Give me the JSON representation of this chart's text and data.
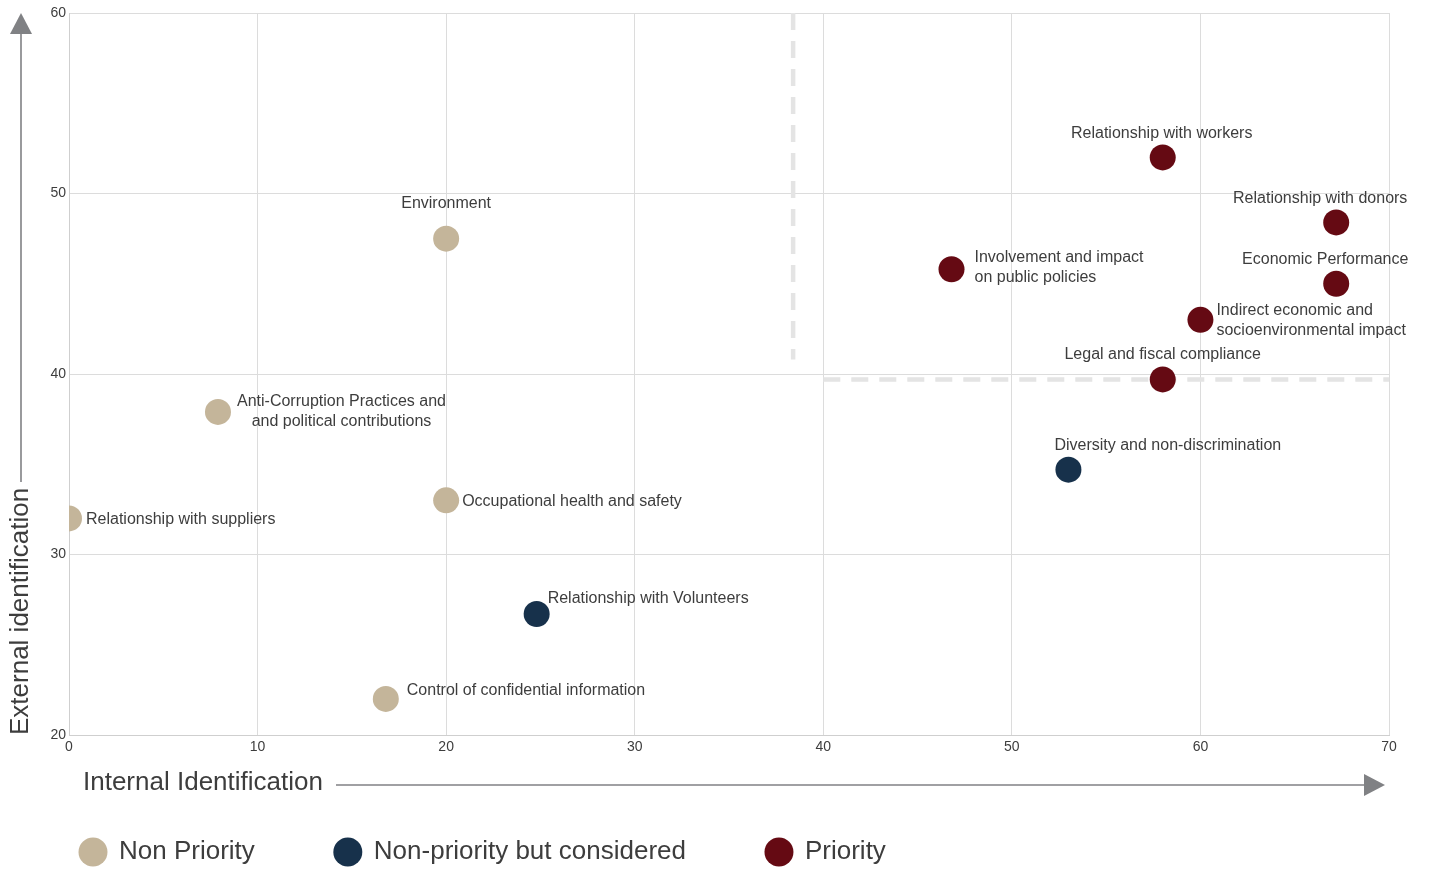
{
  "chart_data": {
    "type": "scatter",
    "xlabel": "Internal Identification",
    "ylabel": "External identification",
    "xlim": [
      0,
      70
    ],
    "xticks": [
      0,
      10,
      20,
      30,
      40,
      50,
      60,
      70
    ],
    "ylim": [
      20,
      60
    ],
    "yticks": [
      20,
      30,
      40,
      50,
      60
    ],
    "grid": true,
    "legend": "bottom left",
    "marker": "circle",
    "series": [
      {
        "name": "Non Priority",
        "color": "#c4b59a",
        "x": [
          20,
          7.9,
          0,
          20,
          16.8
        ],
        "values": [
          47.5,
          37.9,
          32.0,
          33.0,
          22.0
        ]
      },
      {
        "name": "Non-priority but considered",
        "color": "#17314b",
        "x": [
          24.8,
          53.0
        ],
        "values": [
          26.7,
          34.7
        ]
      },
      {
        "name": "Priority",
        "color": "#650a13",
        "x": [
          58.0,
          67.2,
          46.8,
          67.2,
          60.0,
          58.0
        ],
        "values": [
          52.0,
          48.4,
          45.8,
          45.0,
          43.0,
          39.7
        ]
      },
      {
        "type": "line",
        "color": "#e4e4e4",
        "line_style": "dashed",
        "marker": "none",
        "x": [
          38.4,
          38.4
        ],
        "values": [
          60,
          40.8
        ]
      },
      {
        "type": "line",
        "color": "#e4e4e4",
        "line_style": "dashed",
        "marker": "none",
        "x": [
          40,
          70
        ],
        "values": [
          39.7,
          39.7
        ]
      }
    ],
    "annotations": [
      {
        "text": "Environment",
        "x": 20,
        "y": 47.5
      },
      {
        "text": "Anti-Corruption Practices and and political contributions",
        "x": 7.9,
        "y": 37.9
      },
      {
        "text": "Relationship with suppliers",
        "x": 0,
        "y": 32.0
      },
      {
        "text": "Occupational health and safety",
        "x": 20,
        "y": 33.0
      },
      {
        "text": "Control of confidential information",
        "x": 16.8,
        "y": 22.0
      },
      {
        "text": "Relationship with Volunteers",
        "x": 24.8,
        "y": 26.7
      },
      {
        "text": "Diversity and non-discrimination",
        "x": 53.0,
        "y": 34.7
      },
      {
        "text": "Relationship with workers",
        "x": 58.0,
        "y": 52.0
      },
      {
        "text": "Relationship with donors",
        "x": 67.2,
        "y": 48.4
      },
      {
        "text": "Involvement and impact on public policies",
        "x": 46.8,
        "y": 45.8
      },
      {
        "text": "Economic Performance",
        "x": 67.2,
        "y": 45.0
      },
      {
        "text": "Indirect economic and socioenvironmental impact",
        "x": 60.0,
        "y": 43.0
      },
      {
        "text": "Legal and fiscal compliance",
        "x": 58.0,
        "y": 39.7
      }
    ]
  }
}
